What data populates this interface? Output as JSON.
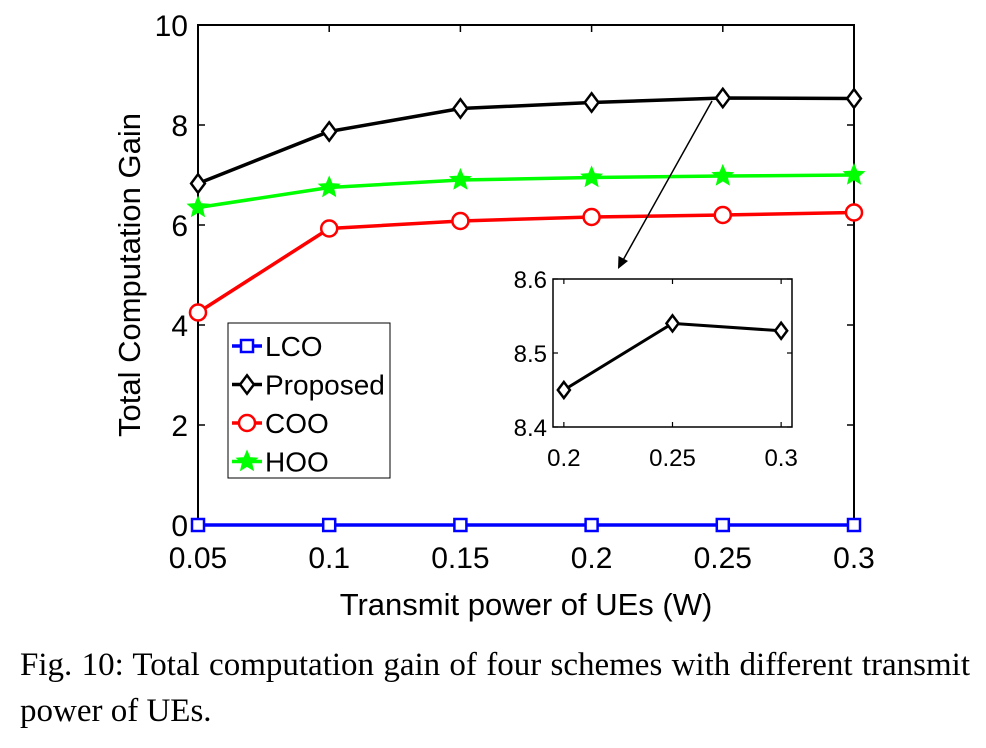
{
  "chart_data": {
    "type": "line",
    "xlabel": "Transmit power of UEs (W)",
    "ylabel": "Total Computation Gain",
    "x": [
      0.05,
      0.1,
      0.15,
      0.2,
      0.25,
      0.3
    ],
    "xtick_labels": [
      "0.05",
      "0.1",
      "0.15",
      "0.2",
      "0.25",
      "0.3"
    ],
    "xlim": [
      0.05,
      0.3
    ],
    "ylim": [
      0,
      10
    ],
    "yticks": [
      0,
      2,
      4,
      6,
      8,
      10
    ],
    "ytick_labels": [
      "0",
      "2",
      "4",
      "6",
      "8",
      "10"
    ],
    "grid": false,
    "legend_position": "bottom-left",
    "series": [
      {
        "name": "LCO",
        "values": [
          0,
          0,
          0,
          0,
          0,
          0
        ],
        "color": "#0000ff",
        "marker": "square"
      },
      {
        "name": "Proposed",
        "values": [
          6.83,
          7.87,
          8.33,
          8.45,
          8.54,
          8.53
        ],
        "color": "#000000",
        "marker": "diamond"
      },
      {
        "name": "COO",
        "values": [
          4.25,
          5.93,
          6.08,
          6.16,
          6.2,
          6.25
        ],
        "color": "#ff0000",
        "marker": "circle"
      },
      {
        "name": "HOO",
        "values": [
          6.35,
          6.75,
          6.9,
          6.95,
          6.98,
          7.0
        ],
        "color": "#00ff00",
        "marker": "star"
      }
    ],
    "inset": {
      "series_name": "Proposed",
      "x": [
        0.2,
        0.25,
        0.3
      ],
      "values": [
        8.45,
        8.54,
        8.53
      ],
      "xlim": [
        0.195,
        0.305
      ],
      "ylim": [
        8.4,
        8.6
      ],
      "xtick_labels": [
        "0.2",
        "0.25",
        "0.3"
      ],
      "ytick_labels": [
        "8.4",
        "8.5",
        "8.6"
      ],
      "color": "#000000"
    }
  },
  "caption": "Fig. 10: Total computation gain of four schemes with different transmit power of UEs."
}
